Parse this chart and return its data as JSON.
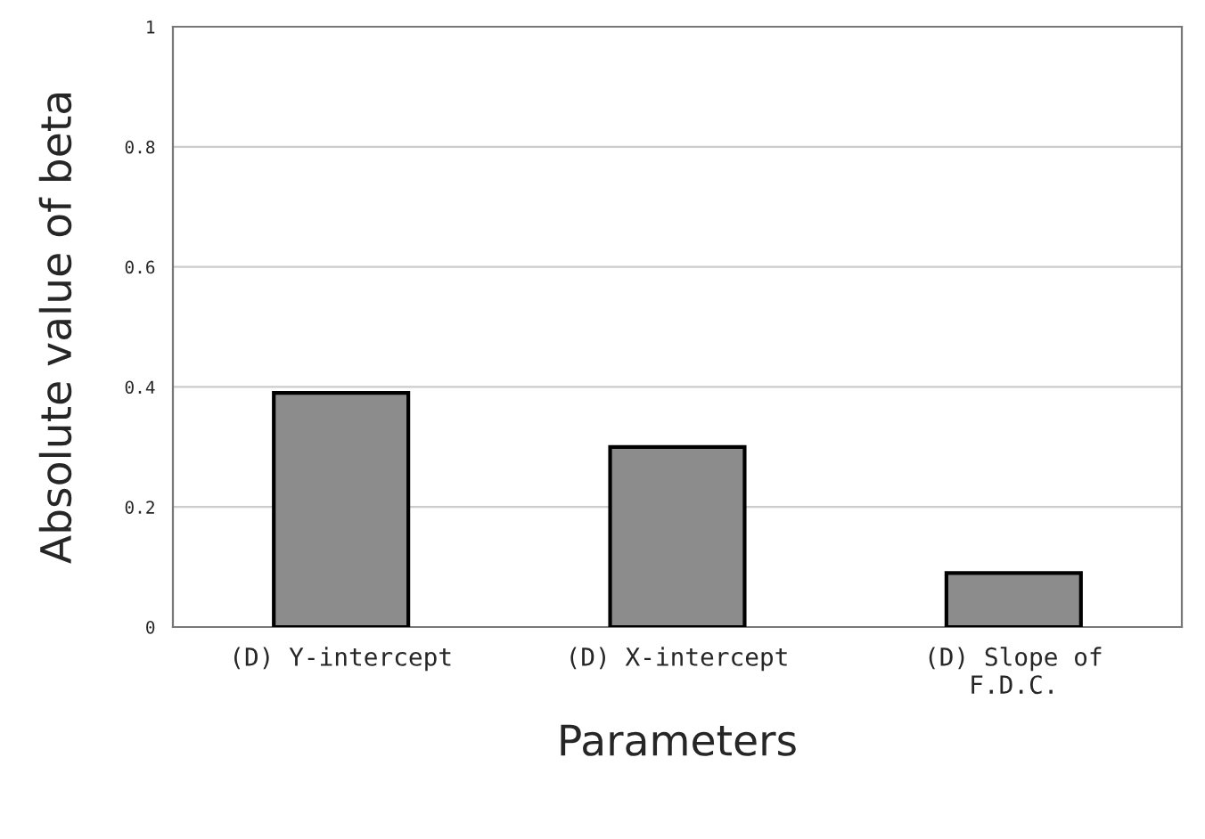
{
  "chart_data": {
    "type": "bar",
    "xlabel": "Parameters",
    "ylabel": "Absolute value of beta",
    "categories": [
      "(D) Y-intercept",
      "(D) X-intercept",
      "(D) Slope of\nF.D.C."
    ],
    "values": [
      0.39,
      0.3,
      0.09
    ],
    "color": "#8c8c8c",
    "ylim": [
      0,
      1
    ],
    "yticks": [
      0,
      0.2,
      0.4,
      0.6,
      0.8,
      1
    ],
    "grid": "y",
    "legend": false
  }
}
